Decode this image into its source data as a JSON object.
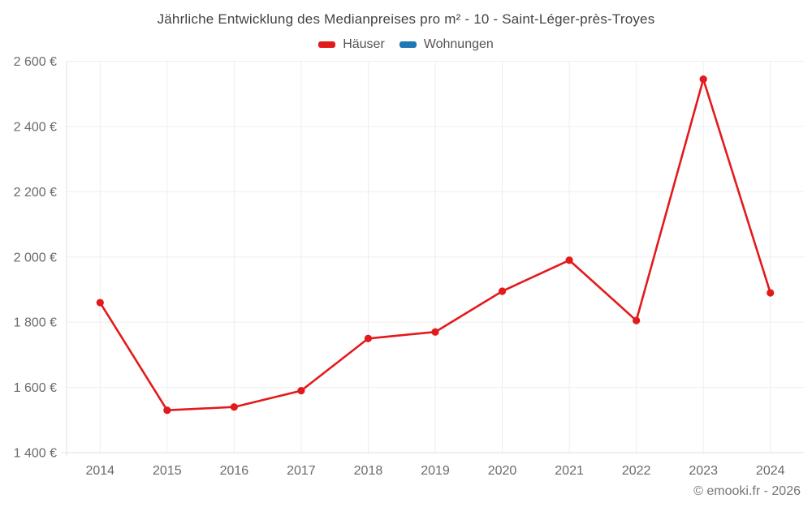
{
  "title": "Jährliche Entwicklung des Medianpreises pro m² - 10 - Saint-Léger-près-Troyes",
  "legend": {
    "items": [
      {
        "label": "Häuser",
        "color": "#e31a1c"
      },
      {
        "label": "Wohnungen",
        "color": "#1f78b4"
      }
    ]
  },
  "footer": {
    "credit": "© emooki.fr - 2026"
  },
  "chart_data": {
    "type": "line",
    "title": "Jährliche Entwicklung des Medianpreises pro m² - 10 - Saint-Léger-près-Troyes",
    "categories": [
      "2014",
      "2015",
      "2016",
      "2017",
      "2018",
      "2019",
      "2020",
      "2021",
      "2022",
      "2023",
      "2024"
    ],
    "series": [
      {
        "name": "Häuser",
        "color": "#e31a1c",
        "values": [
          1860,
          1530,
          1540,
          1590,
          1750,
          1770,
          1895,
          1990,
          1805,
          2545,
          1890
        ]
      },
      {
        "name": "Wohnungen",
        "color": "#1f78b4",
        "values": []
      }
    ],
    "xlabel": "",
    "ylabel": "",
    "y_unit": "€",
    "ylim": [
      1400,
      2600
    ],
    "y_tick_step": 200,
    "y_tick_labels": [
      "1 400 €",
      "1 600 €",
      "1 800 €",
      "2 000 €",
      "2 200 €",
      "2 400 €",
      "2 600 €"
    ],
    "grid": true,
    "legend_position": "top"
  }
}
